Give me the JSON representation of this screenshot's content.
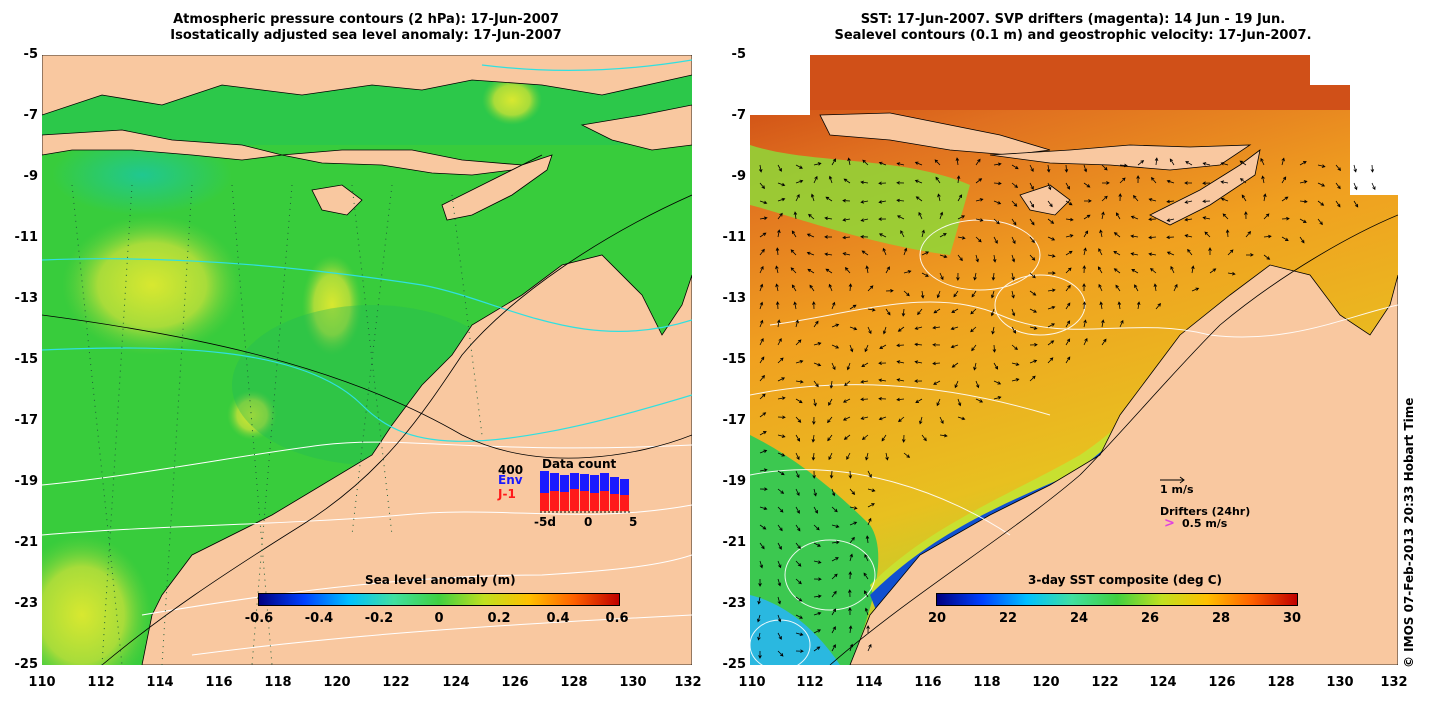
{
  "left_map": {
    "title_line1": "Atmospheric pressure contours (2 hPa): 17-Jun-2007",
    "title_line2": "Isostatically adjusted sea level anomaly: 17-Jun-2007",
    "colorbar_label": "Sea level anomaly (m)",
    "colorbar_ticks": [
      "-0.6",
      "-0.4",
      "-0.2",
      "0",
      "0.2",
      "0.4",
      "0.6"
    ],
    "inset": {
      "title": "Data count",
      "max_label": "400",
      "env_label": "Env",
      "j1_label": "J-1",
      "x_ticks": [
        "-5d",
        "0",
        "5"
      ],
      "env_color": "#1a1aff",
      "j1_color": "#ff1a1a",
      "env_counts": [
        400,
        380,
        360,
        380,
        370,
        360,
        380,
        340,
        320
      ],
      "j1_counts": [
        180,
        200,
        190,
        220,
        200,
        180,
        200,
        170,
        160
      ]
    }
  },
  "right_map": {
    "title_line1": "SST: 17-Jun-2007. SVP drifters (magenta): 14 Jun - 19 Jun.",
    "title_line2": "Sealevel contours (0.1 m) and geostrophic velocity: 17-Jun-2007.",
    "colorbar_label": "3-day SST composite (deg C)",
    "colorbar_ticks": [
      "20",
      "22",
      "24",
      "26",
      "28",
      "30"
    ],
    "legend": {
      "velocity_scale": "1 m/s",
      "drifters_title": "Drifters (24hr)",
      "drifter_symbol": ">",
      "drifter_scale": "0.5 m/s"
    }
  },
  "axes": {
    "y_ticks": [
      "-5",
      "-7",
      "-9",
      "-11",
      "-13",
      "-15",
      "-17",
      "-19",
      "-21",
      "-23",
      "-25"
    ],
    "x_ticks": [
      "110",
      "112",
      "114",
      "116",
      "118",
      "120",
      "122",
      "124",
      "126",
      "128",
      "130",
      "132"
    ]
  },
  "copyright": "© IMOS 07-Feb-2013 20:33 Hobart Time",
  "colors": {
    "land": "#f9c8a0",
    "ocean_green": "#3fcf3f",
    "sst_orange": "#f0a020",
    "drifter": "#e040e0"
  }
}
